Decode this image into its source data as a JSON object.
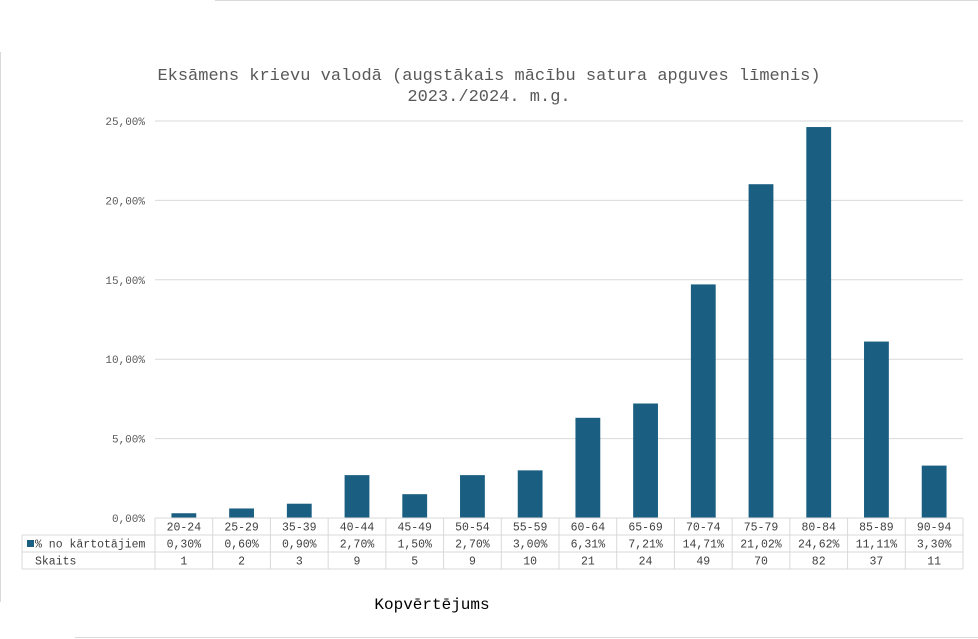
{
  "chart_data": {
    "type": "bar",
    "title": "Eksāmens krievu valodā (augstākais mācību satura apguves līmenis)",
    "subtitle": "2023./2024. m.g.",
    "xlabel": "Kopvērtējums",
    "ylabel": "",
    "ylim": [
      0,
      25
    ],
    "y_ticks": [
      "0,00%",
      "5,00%",
      "10,00%",
      "15,00%",
      "20,00%",
      "25,00%"
    ],
    "grid": true,
    "categories": [
      "20-24",
      "25-29",
      "35-39",
      "40-44",
      "45-49",
      "50-54",
      "55-59",
      "60-64",
      "65-69",
      "70-74",
      "75-79",
      "80-84",
      "85-89",
      "90-94"
    ],
    "series": [
      {
        "name": "% no kārtotājiem",
        "color": "#1a5f82",
        "values": [
          0.3,
          0.6,
          0.9,
          2.7,
          1.5,
          2.7,
          3.0,
          6.31,
          7.21,
          14.71,
          21.02,
          24.62,
          11.11,
          3.3
        ],
        "labels": [
          "0,30%",
          "0,60%",
          "0,90%",
          "2,70%",
          "1,50%",
          "2,70%",
          "3,00%",
          "6,31%",
          "7,21%",
          "14,71%",
          "21,02%",
          "24,62%",
          "11,11%",
          "3,30%"
        ]
      }
    ],
    "table_rows": [
      {
        "name": "Skaits",
        "values": [
          "1",
          "2",
          "3",
          "9",
          "5",
          "9",
          "10",
          "21",
          "24",
          "49",
          "70",
          "82",
          "37",
          "11"
        ]
      }
    ]
  }
}
